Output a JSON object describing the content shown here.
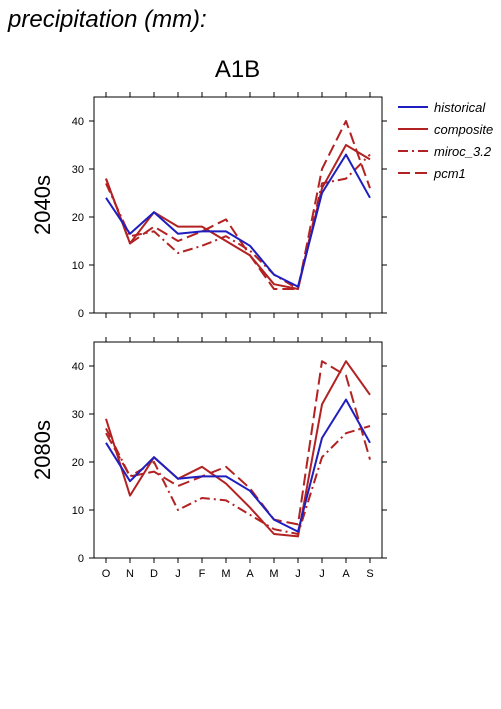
{
  "page": {
    "title": "precipitation (mm):",
    "scenario": "A1B"
  },
  "legend": [
    {
      "name": "historical",
      "color": "#1f1fbf",
      "dash": "solid"
    },
    {
      "name": "composite",
      "color": "#b22222",
      "dash": "solid"
    },
    {
      "name": "miroc_3.2",
      "color": "#b22222",
      "dash": "dashdot"
    },
    {
      "name": "pcm1",
      "color": "#b22222",
      "dash": "dashed"
    }
  ],
  "chart_data": [
    {
      "type": "line",
      "panel": "2040s",
      "ylabel": "2040s",
      "categories": [
        "O",
        "N",
        "D",
        "J",
        "F",
        "M",
        "A",
        "M",
        "J",
        "J",
        "A",
        "S"
      ],
      "ylim": [
        0,
        45
      ],
      "yticks": [
        0,
        10,
        20,
        30,
        40
      ],
      "series": [
        {
          "name": "historical",
          "values": [
            24,
            16.5,
            21,
            16.5,
            17,
            17,
            14,
            8,
            5.5,
            25,
            33,
            24
          ]
        },
        {
          "name": "composite",
          "values": [
            28,
            14.5,
            21,
            18,
            18,
            15,
            12,
            6,
            5,
            26,
            35,
            32
          ]
        },
        {
          "name": "miroc_3.2",
          "values": [
            27,
            16,
            17,
            12.5,
            14,
            16,
            13,
            8,
            5,
            27,
            28,
            33
          ]
        },
        {
          "name": "pcm1",
          "values": [
            28,
            14.5,
            18,
            15,
            17,
            19.5,
            12,
            5,
            5,
            30,
            40,
            26
          ]
        }
      ]
    },
    {
      "type": "line",
      "panel": "2080s",
      "ylabel": "2080s",
      "xlabel": "",
      "categories": [
        "O",
        "N",
        "D",
        "J",
        "F",
        "M",
        "A",
        "M",
        "J",
        "J",
        "A",
        "S"
      ],
      "ylim": [
        0,
        45
      ],
      "yticks": [
        0,
        10,
        20,
        30,
        40
      ],
      "series": [
        {
          "name": "historical",
          "values": [
            24,
            16,
            21,
            16.5,
            17,
            17,
            14,
            8,
            5.5,
            25,
            33,
            24
          ]
        },
        {
          "name": "composite",
          "values": [
            29,
            13,
            21,
            16.5,
            19,
            15.5,
            10.5,
            5,
            4.5,
            32,
            41,
            34
          ]
        },
        {
          "name": "miroc_3.2",
          "values": [
            27,
            17,
            20,
            10,
            12.5,
            12,
            9,
            6,
            5,
            21,
            26,
            27.5
          ]
        },
        {
          "name": "pcm1",
          "values": [
            26,
            17,
            18,
            15,
            17,
            19,
            14.5,
            8,
            7,
            41,
            38,
            20.5
          ]
        }
      ]
    }
  ]
}
